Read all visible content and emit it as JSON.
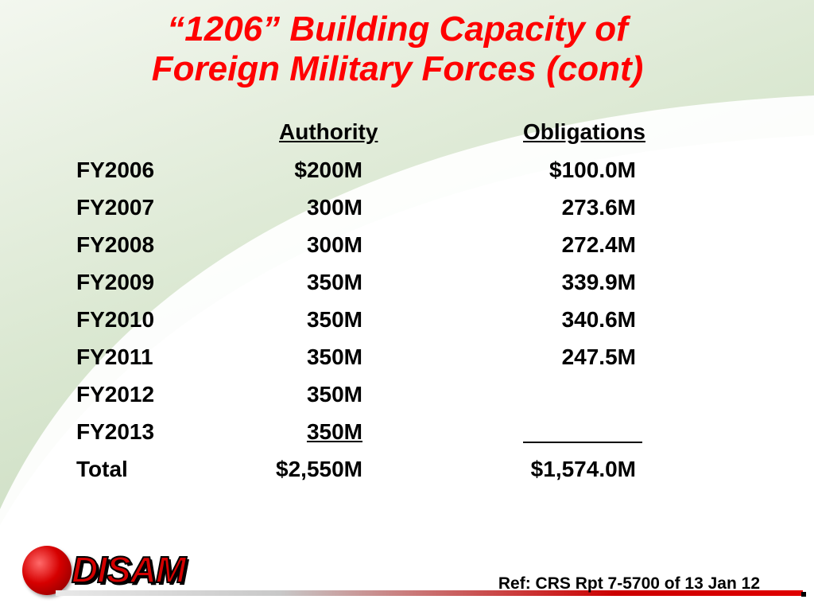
{
  "slide": {
    "title_line1": "“1206” Building Capacity of",
    "title_line2": "Foreign Military Forces (cont)",
    "colors": {
      "title": "#ff0000",
      "accent_bar": "#cc0000",
      "text": "#000000"
    }
  },
  "table": {
    "headers": {
      "authority": "Authority",
      "obligations": "Obligations"
    },
    "rows": [
      {
        "label": "FY2006",
        "authority": "$200M",
        "obligations": "$100.0M"
      },
      {
        "label": "FY2007",
        "authority": "300M",
        "obligations": "273.6M"
      },
      {
        "label": "FY2008",
        "authority": "300M",
        "obligations": "272.4M"
      },
      {
        "label": "FY2009",
        "authority": "350M",
        "obligations": "339.9M"
      },
      {
        "label": "FY2010",
        "authority": "350M",
        "obligations": "340.6M"
      },
      {
        "label": "FY2011",
        "authority": "350M",
        "obligations": "247.5M"
      },
      {
        "label": "FY2012",
        "authority": "350M",
        "obligations": ""
      },
      {
        "label": "FY2013",
        "authority": "350M",
        "obligations": ""
      }
    ],
    "total": {
      "label": "Total",
      "authority": "$2,550M",
      "obligations": "$1,574.0M"
    }
  },
  "footer": {
    "reference": "Ref: CRS Rpt 7-5700 of 13 Jan 12",
    "logo_text": "DISAM",
    "logo_icon": "globe-icon"
  }
}
